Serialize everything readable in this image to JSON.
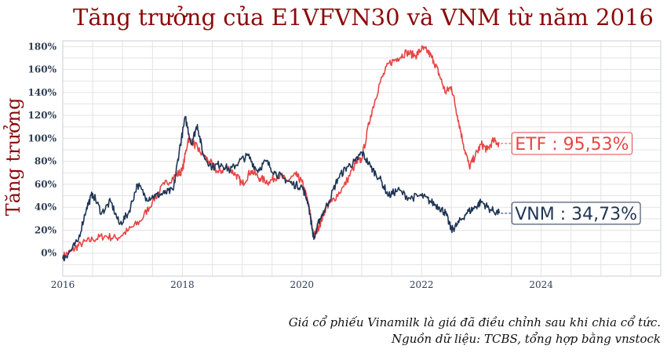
{
  "chart_data": {
    "type": "line",
    "title": "Tăng trưởng của E1VFVN30 và VNM từ năm 2016",
    "ylabel": "Tăng trưởng",
    "xlabel": "",
    "xlim": [
      2016,
      2026.0
    ],
    "ylim": [
      -20,
      185
    ],
    "x_ticks": [
      2016,
      2018,
      2020,
      2022,
      2024
    ],
    "x_tick_labels": [
      "2016",
      "2018",
      "2020",
      "2022",
      "2024"
    ],
    "y_ticks": [
      0,
      20,
      40,
      60,
      80,
      100,
      120,
      140,
      160,
      180
    ],
    "y_tick_labels": [
      "0%",
      "20%",
      "40%",
      "60%",
      "80%",
      "100%",
      "120%",
      "140%",
      "160%",
      "180%"
    ],
    "grid": true,
    "series": [
      {
        "name": "ETF",
        "color": "#e84545",
        "end_label": "ETF : 95,53%",
        "x": [
          2016.0,
          2016.15,
          2016.3,
          2016.5,
          2016.7,
          2016.9,
          2017.1,
          2017.3,
          2017.5,
          2017.7,
          2017.9,
          2018.0,
          2018.1,
          2018.2,
          2018.3,
          2018.45,
          2018.6,
          2018.75,
          2018.9,
          2019.0,
          2019.15,
          2019.3,
          2019.45,
          2019.6,
          2019.75,
          2019.9,
          2020.0,
          2020.1,
          2020.2,
          2020.3,
          2020.4,
          2020.5,
          2020.7,
          2020.9,
          2021.0,
          2021.15,
          2021.3,
          2021.45,
          2021.6,
          2021.75,
          2021.9,
          2022.0,
          2022.1,
          2022.2,
          2022.3,
          2022.4,
          2022.5,
          2022.6,
          2022.7,
          2022.8,
          2022.9,
          2023.0,
          2023.1,
          2023.2,
          2023.3
        ],
        "y": [
          -3,
          2,
          8,
          12,
          15,
          13,
          20,
          28,
          45,
          60,
          68,
          72,
          100,
          95,
          88,
          80,
          70,
          75,
          68,
          60,
          72,
          65,
          62,
          68,
          63,
          68,
          62,
          45,
          15,
          25,
          40,
          45,
          58,
          78,
          82,
          120,
          148,
          165,
          170,
          175,
          172,
          178,
          176,
          168,
          155,
          140,
          145,
          120,
          95,
          75,
          85,
          95,
          90,
          98,
          95.53
        ]
      },
      {
        "name": "VNM",
        "color": "#1f3555",
        "end_label": "VNM : 34,73%",
        "x": [
          2016.0,
          2016.1,
          2016.25,
          2016.4,
          2016.5,
          2016.65,
          2016.8,
          2016.95,
          2017.1,
          2017.25,
          2017.4,
          2017.55,
          2017.7,
          2017.85,
          2017.95,
          2018.05,
          2018.15,
          2018.25,
          2018.35,
          2018.5,
          2018.65,
          2018.8,
          2018.95,
          2019.1,
          2019.25,
          2019.4,
          2019.55,
          2019.7,
          2019.85,
          2020.0,
          2020.1,
          2020.2,
          2020.3,
          2020.45,
          2020.6,
          2020.75,
          2020.9,
          2021.0,
          2021.15,
          2021.3,
          2021.45,
          2021.6,
          2021.8,
          2022.0,
          2022.15,
          2022.3,
          2022.4,
          2022.5,
          2022.6,
          2022.75,
          2022.9,
          2023.0,
          2023.15,
          2023.3
        ],
        "y": [
          -5,
          0,
          10,
          40,
          52,
          35,
          45,
          25,
          35,
          60,
          48,
          50,
          52,
          55,
          90,
          118,
          95,
          112,
          85,
          75,
          78,
          72,
          80,
          85,
          72,
          80,
          70,
          65,
          60,
          58,
          45,
          12,
          30,
          45,
          65,
          75,
          80,
          88,
          75,
          65,
          50,
          55,
          48,
          50,
          45,
          40,
          35,
          20,
          25,
          35,
          40,
          45,
          38,
          34.73
        ]
      }
    ]
  },
  "notes": {
    "line1": "Giá cổ phiếu Vinamilk là giá đã điều chỉnh sau khi chia cổ tức.",
    "line2": "Nguồn dữ liệu: TCBS, tổng hợp bằng vnstock"
  }
}
